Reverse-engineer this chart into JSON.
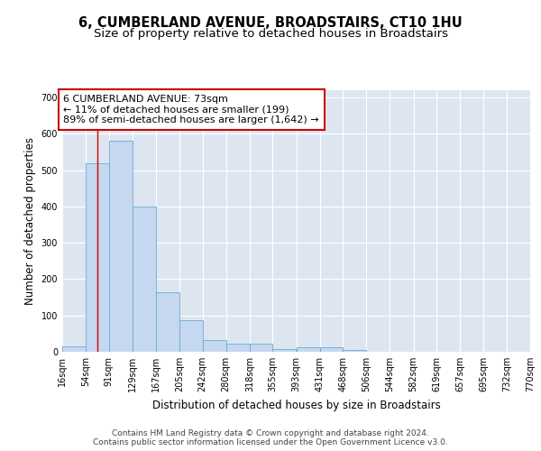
{
  "title": "6, CUMBERLAND AVENUE, BROADSTAIRS, CT10 1HU",
  "subtitle": "Size of property relative to detached houses in Broadstairs",
  "xlabel": "Distribution of detached houses by size in Broadstairs",
  "ylabel": "Number of detached properties",
  "bar_color": "#c5d8ef",
  "bar_edge_color": "#6aaad4",
  "background_color": "#dde6f0",
  "grid_color": "white",
  "bins": [
    16,
    54,
    91,
    129,
    167,
    205,
    242,
    280,
    318,
    355,
    393,
    431,
    468,
    506,
    544,
    582,
    619,
    657,
    695,
    732,
    770
  ],
  "bin_labels": [
    "16sqm",
    "54sqm",
    "91sqm",
    "129sqm",
    "167sqm",
    "205sqm",
    "242sqm",
    "280sqm",
    "318sqm",
    "355sqm",
    "393sqm",
    "431sqm",
    "468sqm",
    "506sqm",
    "544sqm",
    "582sqm",
    "619sqm",
    "657sqm",
    "695sqm",
    "732sqm",
    "770sqm"
  ],
  "values": [
    15,
    520,
    580,
    400,
    165,
    88,
    32,
    22,
    22,
    8,
    13,
    13,
    5,
    0,
    0,
    0,
    0,
    0,
    0,
    0
  ],
  "vline_x": 73,
  "annotation_text": "6 CUMBERLAND AVENUE: 73sqm\n← 11% of detached houses are smaller (199)\n89% of semi-detached houses are larger (1,642) →",
  "annotation_box_color": "white",
  "annotation_box_edge_color": "#cc0000",
  "ylim": [
    0,
    720
  ],
  "yticks": [
    0,
    100,
    200,
    300,
    400,
    500,
    600,
    700
  ],
  "footer_text": "Contains HM Land Registry data © Crown copyright and database right 2024.\nContains public sector information licensed under the Open Government Licence v3.0.",
  "title_fontsize": 10.5,
  "subtitle_fontsize": 9.5,
  "xlabel_fontsize": 8.5,
  "ylabel_fontsize": 8.5,
  "tick_fontsize": 7,
  "annotation_fontsize": 8,
  "footer_fontsize": 6.5
}
